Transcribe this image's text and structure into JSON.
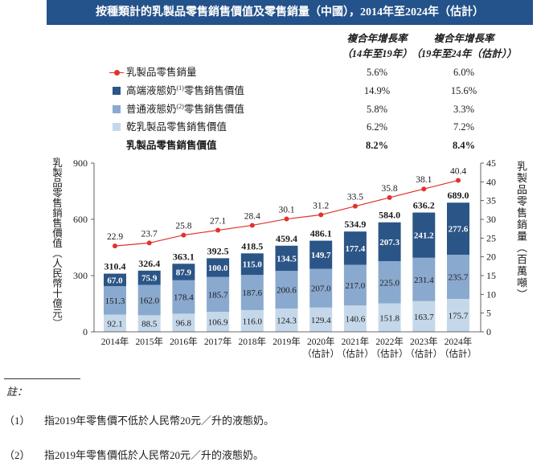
{
  "theme": {
    "title_bar_color": "#24528a",
    "axis_color": "#3a3a3a",
    "text_color": "#1b1b1b"
  },
  "chart_data": {
    "type": "bar",
    "stacked": true,
    "title": "按種類計的乳製品零售銷售價值及零售銷量（中國），2014年至2024年（估計）",
    "legend_table": {
      "headers": [
        {
          "line1": "複合年增長率",
          "line2": "（14年至19年）"
        },
        {
          "line1": "複合年增長率",
          "line2": "（19年至24年（估計））"
        }
      ]
    },
    "categories": [
      "2014年",
      "2015年",
      "2016年",
      "2017年",
      "2018年",
      "2019年",
      "2020年",
      "2021年",
      "2022年",
      "2023年",
      "2024年"
    ],
    "category_notes": [
      null,
      null,
      null,
      null,
      null,
      null,
      "（估計）",
      "（估計）",
      "（估計）",
      "（估計）",
      "（估計）"
    ],
    "series": [
      {
        "label": "乾乳製品零售銷售價值",
        "color": "#c5d8ea",
        "cagr_14_19": "6.2%",
        "cagr_19_24e": "7.2%",
        "values": [
          92.1,
          88.5,
          96.8,
          106.9,
          116.0,
          124.3,
          129.4,
          140.6,
          151.8,
          163.7,
          175.7
        ]
      },
      {
        "label": "普通液態奶",
        "note": "(2)",
        "label_tail": "零售銷售價值",
        "color": "#8aa9ce",
        "cagr_14_19": "5.8%",
        "cagr_19_24e": "3.3%",
        "values": [
          151.3,
          162.0,
          178.4,
          185.7,
          187.6,
          200.6,
          207.0,
          217.0,
          225.0,
          231.4,
          235.7
        ]
      },
      {
        "label": "高端液態奶",
        "note": "(1)",
        "label_tail": "零售銷售價值",
        "color": "#2b5586",
        "cagr_14_19": "14.9%",
        "cagr_19_24e": "15.6%",
        "values": [
          67.0,
          75.9,
          87.9,
          100.0,
          115.0,
          134.5,
          149.7,
          177.4,
          207.3,
          241.2,
          277.6
        ]
      }
    ],
    "totals": {
      "label": "乳製品零售銷售價值",
      "cagr_14_19": "8.2%",
      "cagr_19_24e": "8.4%",
      "values": [
        310.4,
        326.4,
        363.1,
        392.5,
        418.5,
        459.4,
        486.1,
        534.9,
        584.0,
        636.2,
        689.0
      ]
    },
    "line": {
      "label": "乳製品零售銷量",
      "color": "#e2322a",
      "cagr_14_19": "5.6%",
      "cagr_19_24e": "6.0%",
      "values": [
        22.9,
        23.7,
        25.8,
        27.1,
        28.4,
        30.1,
        31.2,
        33.5,
        35.8,
        38.1,
        40.4
      ]
    },
    "ylabel": "乳製品零售銷售價值（人民幣十億元）",
    "ylim": [
      0,
      900
    ],
    "yticks": [
      0,
      300,
      600,
      900
    ],
    "y2label": "乳製品零售銷量（百萬噸）",
    "y2lim": [
      0,
      45
    ],
    "y2ticks": [
      0,
      5,
      10,
      15,
      20,
      25,
      30,
      35,
      40,
      45
    ]
  },
  "notes": {
    "heading": "註：",
    "items": [
      {
        "marker": "（1）",
        "text": "指2019年零售價不低於人民幣20元／升的液態奶。"
      },
      {
        "marker": "（2）",
        "text": "指2019年零售價低於人民幣20元／升的液態奶。"
      }
    ]
  }
}
